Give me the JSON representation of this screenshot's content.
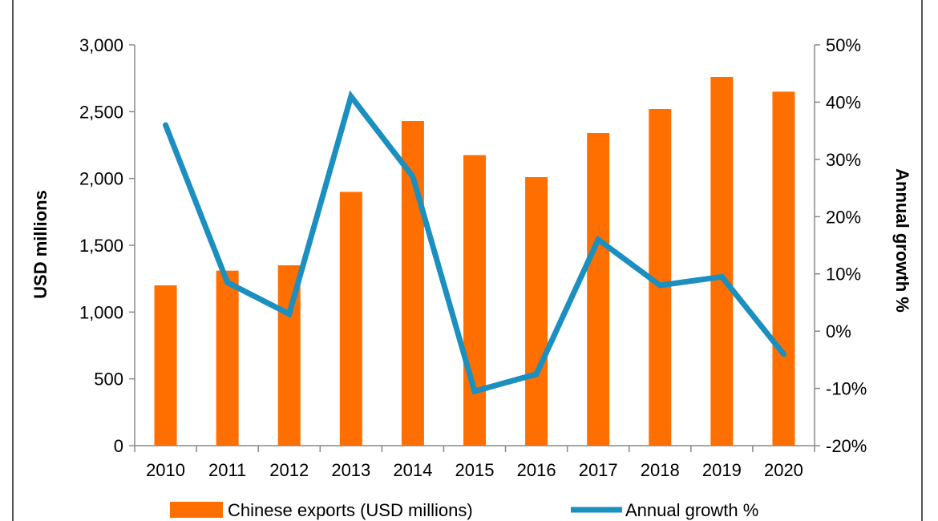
{
  "chart_data": {
    "type": "bar",
    "categories": [
      "2010",
      "2011",
      "2012",
      "2013",
      "2014",
      "2015",
      "2016",
      "2017",
      "2018",
      "2019",
      "2020"
    ],
    "series": [
      {
        "name": "Chinese exports (USD millions)",
        "type": "bar",
        "axis": "left",
        "color": "#FF6F00",
        "values": [
          1200,
          1310,
          1350,
          1900,
          2430,
          2175,
          2010,
          2340,
          2520,
          2760,
          2650
        ]
      },
      {
        "name": "Annual growth %",
        "type": "line",
        "axis": "right",
        "color": "#1B8FBF",
        "values": [
          36,
          8.5,
          3,
          41,
          27,
          -10.5,
          -7.5,
          16,
          8,
          9.5,
          -4
        ]
      }
    ],
    "ylabel": "USD millions",
    "y2label": "Annual growth %",
    "ylim": [
      0,
      3000
    ],
    "yticks": [
      "0",
      "500",
      "1,000",
      "1,500",
      "2,000",
      "2,500",
      "3,000"
    ],
    "y2lim": [
      -20,
      50
    ],
    "y2ticks": [
      "-20%",
      "-10%",
      "0%",
      "10%",
      "20%",
      "30%",
      "40%",
      "50%"
    ],
    "grid": false,
    "legend_position": "bottom"
  }
}
